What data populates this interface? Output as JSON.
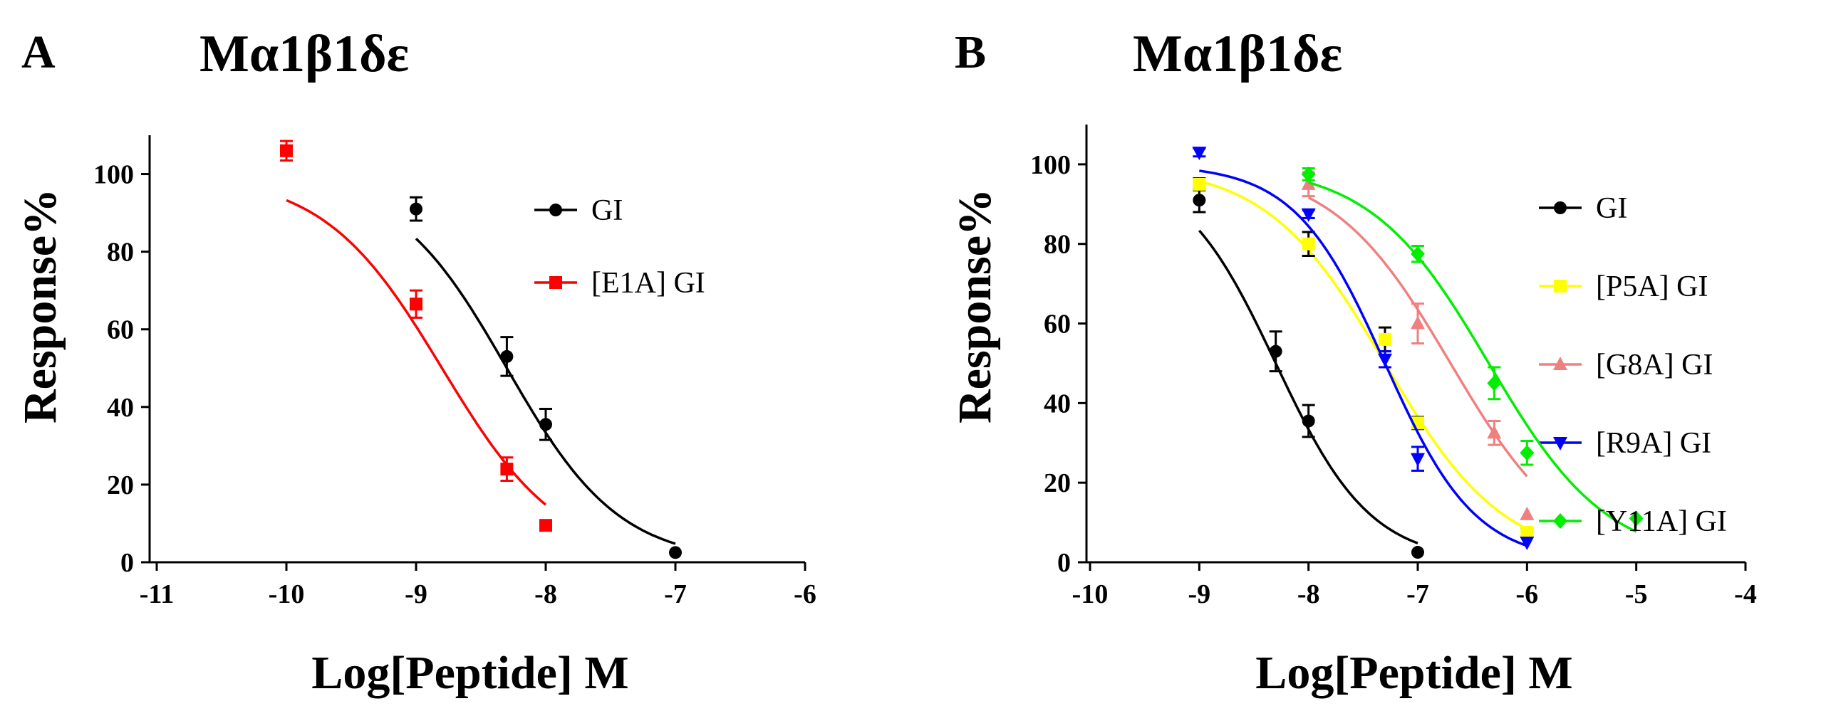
{
  "chart_data": [
    {
      "type": "scatter",
      "panel_letter": "A",
      "title": "Mα1β1δε",
      "xlabel": "Log[Peptide] M",
      "ylabel": "Response%",
      "xlim": [
        -11,
        -6
      ],
      "ylim": [
        0,
        110
      ],
      "xticks": [
        -11,
        -10,
        -9,
        -8,
        -7,
        -6
      ],
      "xtick_labels": [
        "-11",
        "-10",
        "-9",
        "-8",
        "-7",
        "-6"
      ],
      "yticks": [
        0,
        20,
        40,
        60,
        80,
        100
      ],
      "ytick_labels": [
        "0",
        "20",
        "40",
        "60",
        "80",
        "100"
      ],
      "grid": false,
      "legend_position": "right",
      "series": [
        {
          "name": "GI",
          "color": "#000000",
          "marker": "circle",
          "x": [
            -9,
            -8.3,
            -8,
            -7
          ],
          "y": [
            91,
            53,
            35.5,
            2.5
          ],
          "err": [
            3,
            5,
            4,
            0
          ],
          "fit": {
            "top": 100,
            "bottom": 0,
            "logIC50": -8.3,
            "hill": 1.0,
            "x_range": [
              -9,
              -7
            ]
          }
        },
        {
          "name": "[E1A] GI",
          "color": "#ff0000",
          "marker": "square",
          "x": [
            -10,
            -9,
            -8.3,
            -8
          ],
          "y": [
            106,
            66.5,
            24,
            9.5
          ],
          "err": [
            2.5,
            3.5,
            3,
            1
          ],
          "fit": {
            "top": 100,
            "bottom": 0,
            "logIC50": -8.8,
            "hill": 0.95,
            "x_range": [
              -10,
              -8
            ]
          }
        }
      ]
    },
    {
      "type": "scatter",
      "panel_letter": "B",
      "title": "Mα1β1δε",
      "xlabel": "Log[Peptide] M",
      "ylabel": "Response%",
      "xlim": [
        -10,
        -4
      ],
      "ylim": [
        0,
        110
      ],
      "xticks": [
        -10,
        -9,
        -8,
        -7,
        -6,
        -5,
        -4
      ],
      "xtick_labels": [
        "-10",
        "-9",
        "-8",
        "-7",
        "-6",
        "-5",
        "-4"
      ],
      "yticks": [
        0,
        20,
        40,
        60,
        80,
        100
      ],
      "ytick_labels": [
        "0",
        "20",
        "40",
        "60",
        "80",
        "100"
      ],
      "grid": false,
      "legend_position": "right",
      "series": [
        {
          "name": "GI",
          "color": "#000000",
          "marker": "circle",
          "x": [
            -9,
            -8.3,
            -8,
            -7
          ],
          "y": [
            91,
            53,
            35.5,
            2.5
          ],
          "err": [
            3,
            5,
            4,
            0
          ],
          "fit": {
            "top": 100,
            "bottom": 0,
            "logIC50": -8.3,
            "hill": 1.0,
            "x_range": [
              -9,
              -7
            ]
          }
        },
        {
          "name": "[P5A] GI",
          "color": "#ffff00",
          "marker": "square",
          "x": [
            -9,
            -8,
            -7.3,
            -7,
            -6
          ],
          "y": [
            95,
            80,
            56,
            35,
            7.5
          ],
          "err": [
            1.5,
            3,
            3,
            1.5,
            1
          ],
          "fit": {
            "top": 100,
            "bottom": 0,
            "logIC50": -7.3,
            "hill": 0.8,
            "x_range": [
              -9,
              -6
            ]
          }
        },
        {
          "name": "[G8A] GI",
          "color": "#f08080",
          "marker": "triangle-up",
          "x": [
            -8,
            -7,
            -6.3,
            -6
          ],
          "y": [
            95,
            60,
            32.5,
            12
          ],
          "err": [
            3,
            5,
            3,
            0
          ],
          "fit": {
            "top": 100,
            "bottom": 0,
            "logIC50": -6.7,
            "hill": 0.8,
            "x_range": [
              -8,
              -6
            ]
          }
        },
        {
          "name": "[R9A] GI",
          "color": "#0000ff",
          "marker": "triangle-down",
          "x": [
            -9,
            -8,
            -7.3,
            -7,
            -6
          ],
          "y": [
            103,
            87.5,
            51,
            26,
            5
          ],
          "err": [
            1,
            1,
            2,
            3,
            0
          ],
          "fit": {
            "top": 100,
            "bottom": 0,
            "logIC50": -7.3,
            "hill": 1.05,
            "x_range": [
              -9,
              -6
            ]
          }
        },
        {
          "name": "[Y11A] GI",
          "color": "#00ee00",
          "marker": "diamond",
          "x": [
            -8,
            -7,
            -6.3,
            -6,
            -5
          ],
          "y": [
            97.5,
            77.5,
            45,
            27.5,
            11
          ],
          "err": [
            1.5,
            2,
            4,
            3,
            0
          ],
          "fit": {
            "top": 100,
            "bottom": 0,
            "logIC50": -6.35,
            "hill": 0.8,
            "x_range": [
              -8,
              -5
            ]
          }
        }
      ]
    }
  ]
}
